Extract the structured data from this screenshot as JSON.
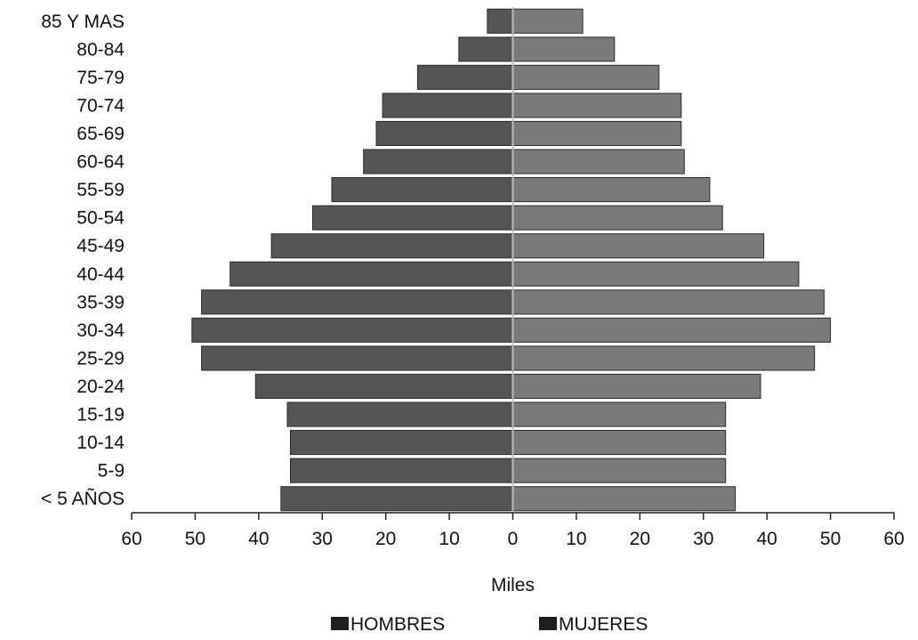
{
  "chart_data": {
    "type": "bar",
    "orientation": "horizontal",
    "variant": "population-pyramid",
    "categories": [
      "< 5 AÑOS",
      "5-9",
      "10-14",
      "15-19",
      "20-24",
      "25-29",
      "30-34",
      "35-39",
      "40-44",
      "45-49",
      "50-54",
      "55-59",
      "60-64",
      "65-69",
      "70-74",
      "75-79",
      "80-84",
      "85 Y MAS"
    ],
    "series": [
      {
        "name": "HOMBRES",
        "side": "left",
        "values": [
          36.5,
          35,
          35,
          35.5,
          40.5,
          49,
          50.5,
          49,
          44.5,
          38,
          31.5,
          28.5,
          23.5,
          21.5,
          20.5,
          15,
          8.5,
          4
        ]
      },
      {
        "name": "MUJERES",
        "side": "right",
        "values": [
          35,
          33.5,
          33.5,
          33.5,
          39,
          47.5,
          50,
          49,
          45,
          39.5,
          33,
          31,
          27,
          26.5,
          26.5,
          23,
          16,
          11
        ]
      }
    ],
    "xlabel": "Miles",
    "xlim": [
      -60,
      60
    ],
    "xticks": [
      -60,
      -50,
      -40,
      -30,
      -20,
      -10,
      0,
      10,
      20,
      30,
      40,
      50,
      60
    ],
    "xtick_labels": [
      "60",
      "50",
      "40",
      "30",
      "20",
      "10",
      "0",
      "10",
      "20",
      "30",
      "40",
      "50",
      "60"
    ],
    "grid": false,
    "legend": "bottom-center",
    "colors": {
      "hombres": "#555555",
      "mujeres": "#7a7a7a",
      "axis": "#222222",
      "center": "#bbbbbb"
    }
  }
}
